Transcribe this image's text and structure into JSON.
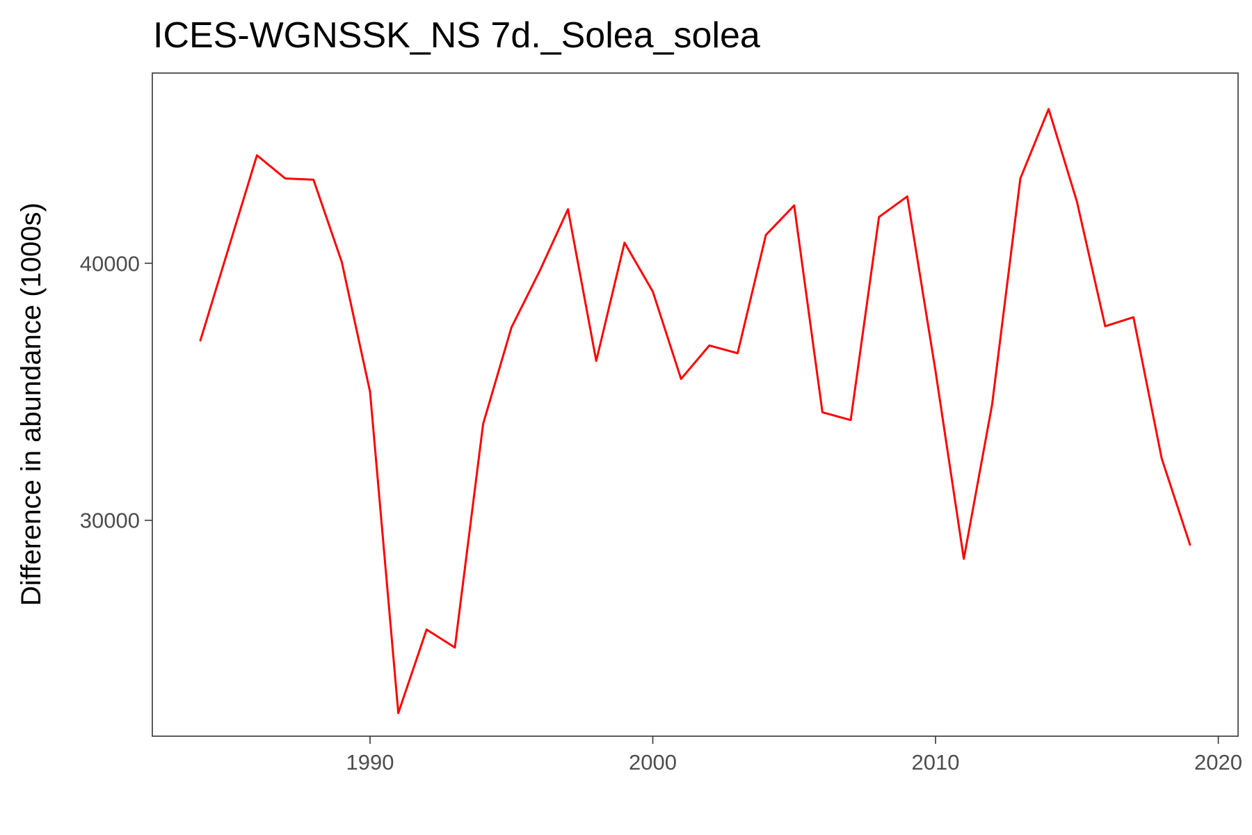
{
  "chart_data": {
    "type": "line",
    "title": "ICES-WGNSSK_NS 7d._Solea_solea",
    "xlabel": "",
    "ylabel": "Difference in abundance (1000s)",
    "xlim": [
      1982.3,
      2020.7
    ],
    "ylim": [
      21600,
      47400
    ],
    "x_ticks": [
      1990,
      2000,
      2010,
      2020
    ],
    "y_ticks": [
      30000,
      40000
    ],
    "grid": false,
    "legend": "none",
    "series": [
      {
        "color": "#ff0000",
        "x": [
          1984,
          1985,
          1986,
          1987,
          1988,
          1989,
          1990,
          1991,
          1992,
          1993,
          1994,
          1995,
          1996,
          1997,
          1998,
          1999,
          2000,
          2001,
          2002,
          2003,
          2004,
          2005,
          2006,
          2007,
          2008,
          2009,
          2010,
          2011,
          2012,
          2013,
          2014,
          2015,
          2016,
          2017,
          2018,
          2019
        ],
        "values": [
          37000,
          40600,
          44200,
          43300,
          43250,
          40050,
          35000,
          22500,
          25750,
          25050,
          33750,
          37500,
          39700,
          42100,
          36200,
          40800,
          38900,
          35500,
          36800,
          36500,
          41100,
          42250,
          34200,
          33900,
          41800,
          42600,
          35800,
          28500,
          34500,
          43300,
          46000,
          42400,
          37550,
          37900,
          32400,
          29050
        ]
      }
    ]
  }
}
